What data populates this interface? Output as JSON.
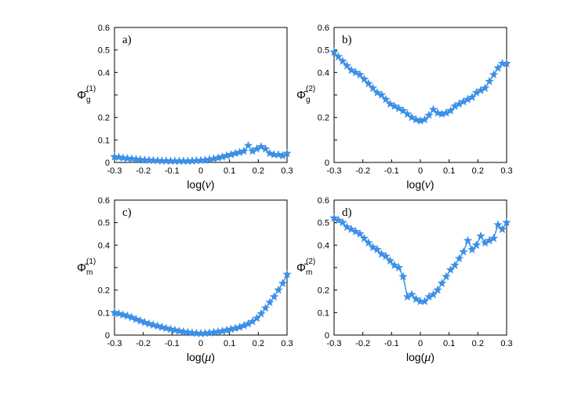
{
  "chart_data": [
    {
      "type": "line",
      "panel_label": "a)",
      "xlabel_pre": "log(",
      "xlabel_var": "ν",
      "xlabel_post": ")",
      "ylabel_main": "Φ̄",
      "ylabel_sub": "g",
      "ylabel_sup": "(1)",
      "xlim": [
        -0.3,
        0.3
      ],
      "ylim": [
        0,
        0.6
      ],
      "xticks": [
        "-0.3",
        "-0.2",
        "-0.1",
        "0",
        "0.1",
        "0.2",
        "0.3"
      ],
      "yticks": [
        "0",
        "0.1",
        "0.2",
        "",
        "0.4",
        "0.5",
        "0.6"
      ],
      "color": "#3b8fe6",
      "x": [
        -0.3,
        -0.285,
        -0.27,
        -0.255,
        -0.24,
        -0.225,
        -0.21,
        -0.195,
        -0.18,
        -0.165,
        -0.15,
        -0.135,
        -0.12,
        -0.105,
        -0.09,
        -0.075,
        -0.06,
        -0.045,
        -0.03,
        -0.015,
        0,
        0.015,
        0.03,
        0.045,
        0.06,
        0.075,
        0.09,
        0.105,
        0.12,
        0.135,
        0.15,
        0.165,
        0.18,
        0.195,
        0.21,
        0.225,
        0.24,
        0.255,
        0.27,
        0.285,
        0.3
      ],
      "y": [
        0.025,
        0.023,
        0.02,
        0.018,
        0.016,
        0.014,
        0.012,
        0.011,
        0.01,
        0.009,
        0.008,
        0.007,
        0.007,
        0.006,
        0.006,
        0.006,
        0.006,
        0.006,
        0.007,
        0.008,
        0.009,
        0.011,
        0.013,
        0.016,
        0.02,
        0.025,
        0.03,
        0.035,
        0.04,
        0.045,
        0.05,
        0.075,
        0.05,
        0.06,
        0.07,
        0.06,
        0.04,
        0.035,
        0.035,
        0.03,
        0.04
      ]
    },
    {
      "type": "line",
      "panel_label": "b)",
      "xlabel_pre": "log(",
      "xlabel_var": "ν",
      "xlabel_post": ")",
      "ylabel_main": "Φ̄",
      "ylabel_sub": "g",
      "ylabel_sup": "(2)",
      "xlim": [
        -0.3,
        0.3
      ],
      "ylim": [
        0,
        0.6
      ],
      "xticks": [
        "-0.3",
        "-0.2",
        "-0.1",
        "0",
        "0.1",
        "0.2",
        "0.3"
      ],
      "yticks": [
        "0",
        "",
        "0.2",
        "",
        "0.4",
        "0.5",
        "0.6"
      ],
      "color": "#3b8fe6",
      "x": [
        -0.3,
        -0.285,
        -0.27,
        -0.255,
        -0.24,
        -0.225,
        -0.21,
        -0.195,
        -0.18,
        -0.165,
        -0.15,
        -0.135,
        -0.12,
        -0.105,
        -0.09,
        -0.075,
        -0.06,
        -0.045,
        -0.03,
        -0.015,
        0,
        0.015,
        0.03,
        0.045,
        0.06,
        0.075,
        0.09,
        0.105,
        0.12,
        0.135,
        0.15,
        0.165,
        0.18,
        0.195,
        0.21,
        0.225,
        0.24,
        0.255,
        0.27,
        0.285,
        0.3
      ],
      "y": [
        0.49,
        0.47,
        0.45,
        0.43,
        0.41,
        0.4,
        0.39,
        0.37,
        0.35,
        0.33,
        0.31,
        0.3,
        0.28,
        0.26,
        0.25,
        0.24,
        0.23,
        0.215,
        0.2,
        0.19,
        0.185,
        0.19,
        0.21,
        0.235,
        0.22,
        0.215,
        0.22,
        0.23,
        0.25,
        0.26,
        0.27,
        0.28,
        0.29,
        0.31,
        0.32,
        0.33,
        0.36,
        0.39,
        0.42,
        0.44,
        0.44
      ]
    },
    {
      "type": "line",
      "panel_label": "c)",
      "xlabel_pre": "log(",
      "xlabel_var": "μ",
      "xlabel_post": ")",
      "ylabel_main": "Φ̄",
      "ylabel_sub": "m",
      "ylabel_sup": "(1)",
      "xlim": [
        -0.3,
        0.3
      ],
      "ylim": [
        0,
        0.6
      ],
      "xticks": [
        "-0.3",
        "-0.2",
        "-0.1",
        "0",
        "0.1",
        "0.2",
        "0.3"
      ],
      "yticks": [
        "0",
        "0.1",
        "0.2",
        "",
        "0.4",
        "0.5",
        "0.6"
      ],
      "color": "#3b8fe6",
      "x": [
        -0.3,
        -0.285,
        -0.27,
        -0.255,
        -0.24,
        -0.225,
        -0.21,
        -0.195,
        -0.18,
        -0.165,
        -0.15,
        -0.135,
        -0.12,
        -0.105,
        -0.09,
        -0.075,
        -0.06,
        -0.045,
        -0.03,
        -0.015,
        0,
        0.015,
        0.03,
        0.045,
        0.06,
        0.075,
        0.09,
        0.105,
        0.12,
        0.135,
        0.15,
        0.165,
        0.18,
        0.195,
        0.21,
        0.225,
        0.24,
        0.255,
        0.27,
        0.285,
        0.3
      ],
      "y": [
        0.1,
        0.095,
        0.09,
        0.085,
        0.078,
        0.07,
        0.063,
        0.056,
        0.05,
        0.045,
        0.04,
        0.035,
        0.03,
        0.026,
        0.022,
        0.018,
        0.015,
        0.012,
        0.01,
        0.008,
        0.007,
        0.008,
        0.01,
        0.012,
        0.015,
        0.018,
        0.022,
        0.026,
        0.03,
        0.035,
        0.042,
        0.05,
        0.06,
        0.075,
        0.095,
        0.12,
        0.145,
        0.17,
        0.2,
        0.23,
        0.27
      ]
    },
    {
      "type": "line",
      "panel_label": "d)",
      "xlabel_pre": "log(",
      "xlabel_var": "μ",
      "xlabel_post": ")",
      "ylabel_main": "Φ̄",
      "ylabel_sub": "m",
      "ylabel_sup": "(2)",
      "xlim": [
        -0.3,
        0.3
      ],
      "ylim": [
        0,
        0.6
      ],
      "xticks": [
        "-0.3",
        "-0.2",
        "-0.1",
        "0",
        "0.1",
        "0.2",
        "0.3"
      ],
      "yticks": [
        "0",
        "0.1",
        "0.2",
        "",
        "0.4",
        "0.5",
        "0.6"
      ],
      "color": "#3b8fe6",
      "x": [
        -0.3,
        -0.285,
        -0.27,
        -0.255,
        -0.24,
        -0.225,
        -0.21,
        -0.195,
        -0.18,
        -0.165,
        -0.15,
        -0.135,
        -0.12,
        -0.105,
        -0.09,
        -0.075,
        -0.06,
        -0.045,
        -0.03,
        -0.015,
        0,
        0.015,
        0.03,
        0.045,
        0.06,
        0.075,
        0.09,
        0.105,
        0.12,
        0.135,
        0.15,
        0.165,
        0.18,
        0.195,
        0.21,
        0.225,
        0.24,
        0.255,
        0.27,
        0.285,
        0.3
      ],
      "y": [
        0.52,
        0.51,
        0.5,
        0.48,
        0.47,
        0.46,
        0.45,
        0.43,
        0.41,
        0.39,
        0.38,
        0.36,
        0.35,
        0.33,
        0.31,
        0.3,
        0.26,
        0.17,
        0.18,
        0.16,
        0.15,
        0.15,
        0.17,
        0.18,
        0.2,
        0.23,
        0.26,
        0.29,
        0.31,
        0.34,
        0.37,
        0.42,
        0.38,
        0.4,
        0.44,
        0.41,
        0.42,
        0.43,
        0.49,
        0.47,
        0.5
      ]
    }
  ]
}
